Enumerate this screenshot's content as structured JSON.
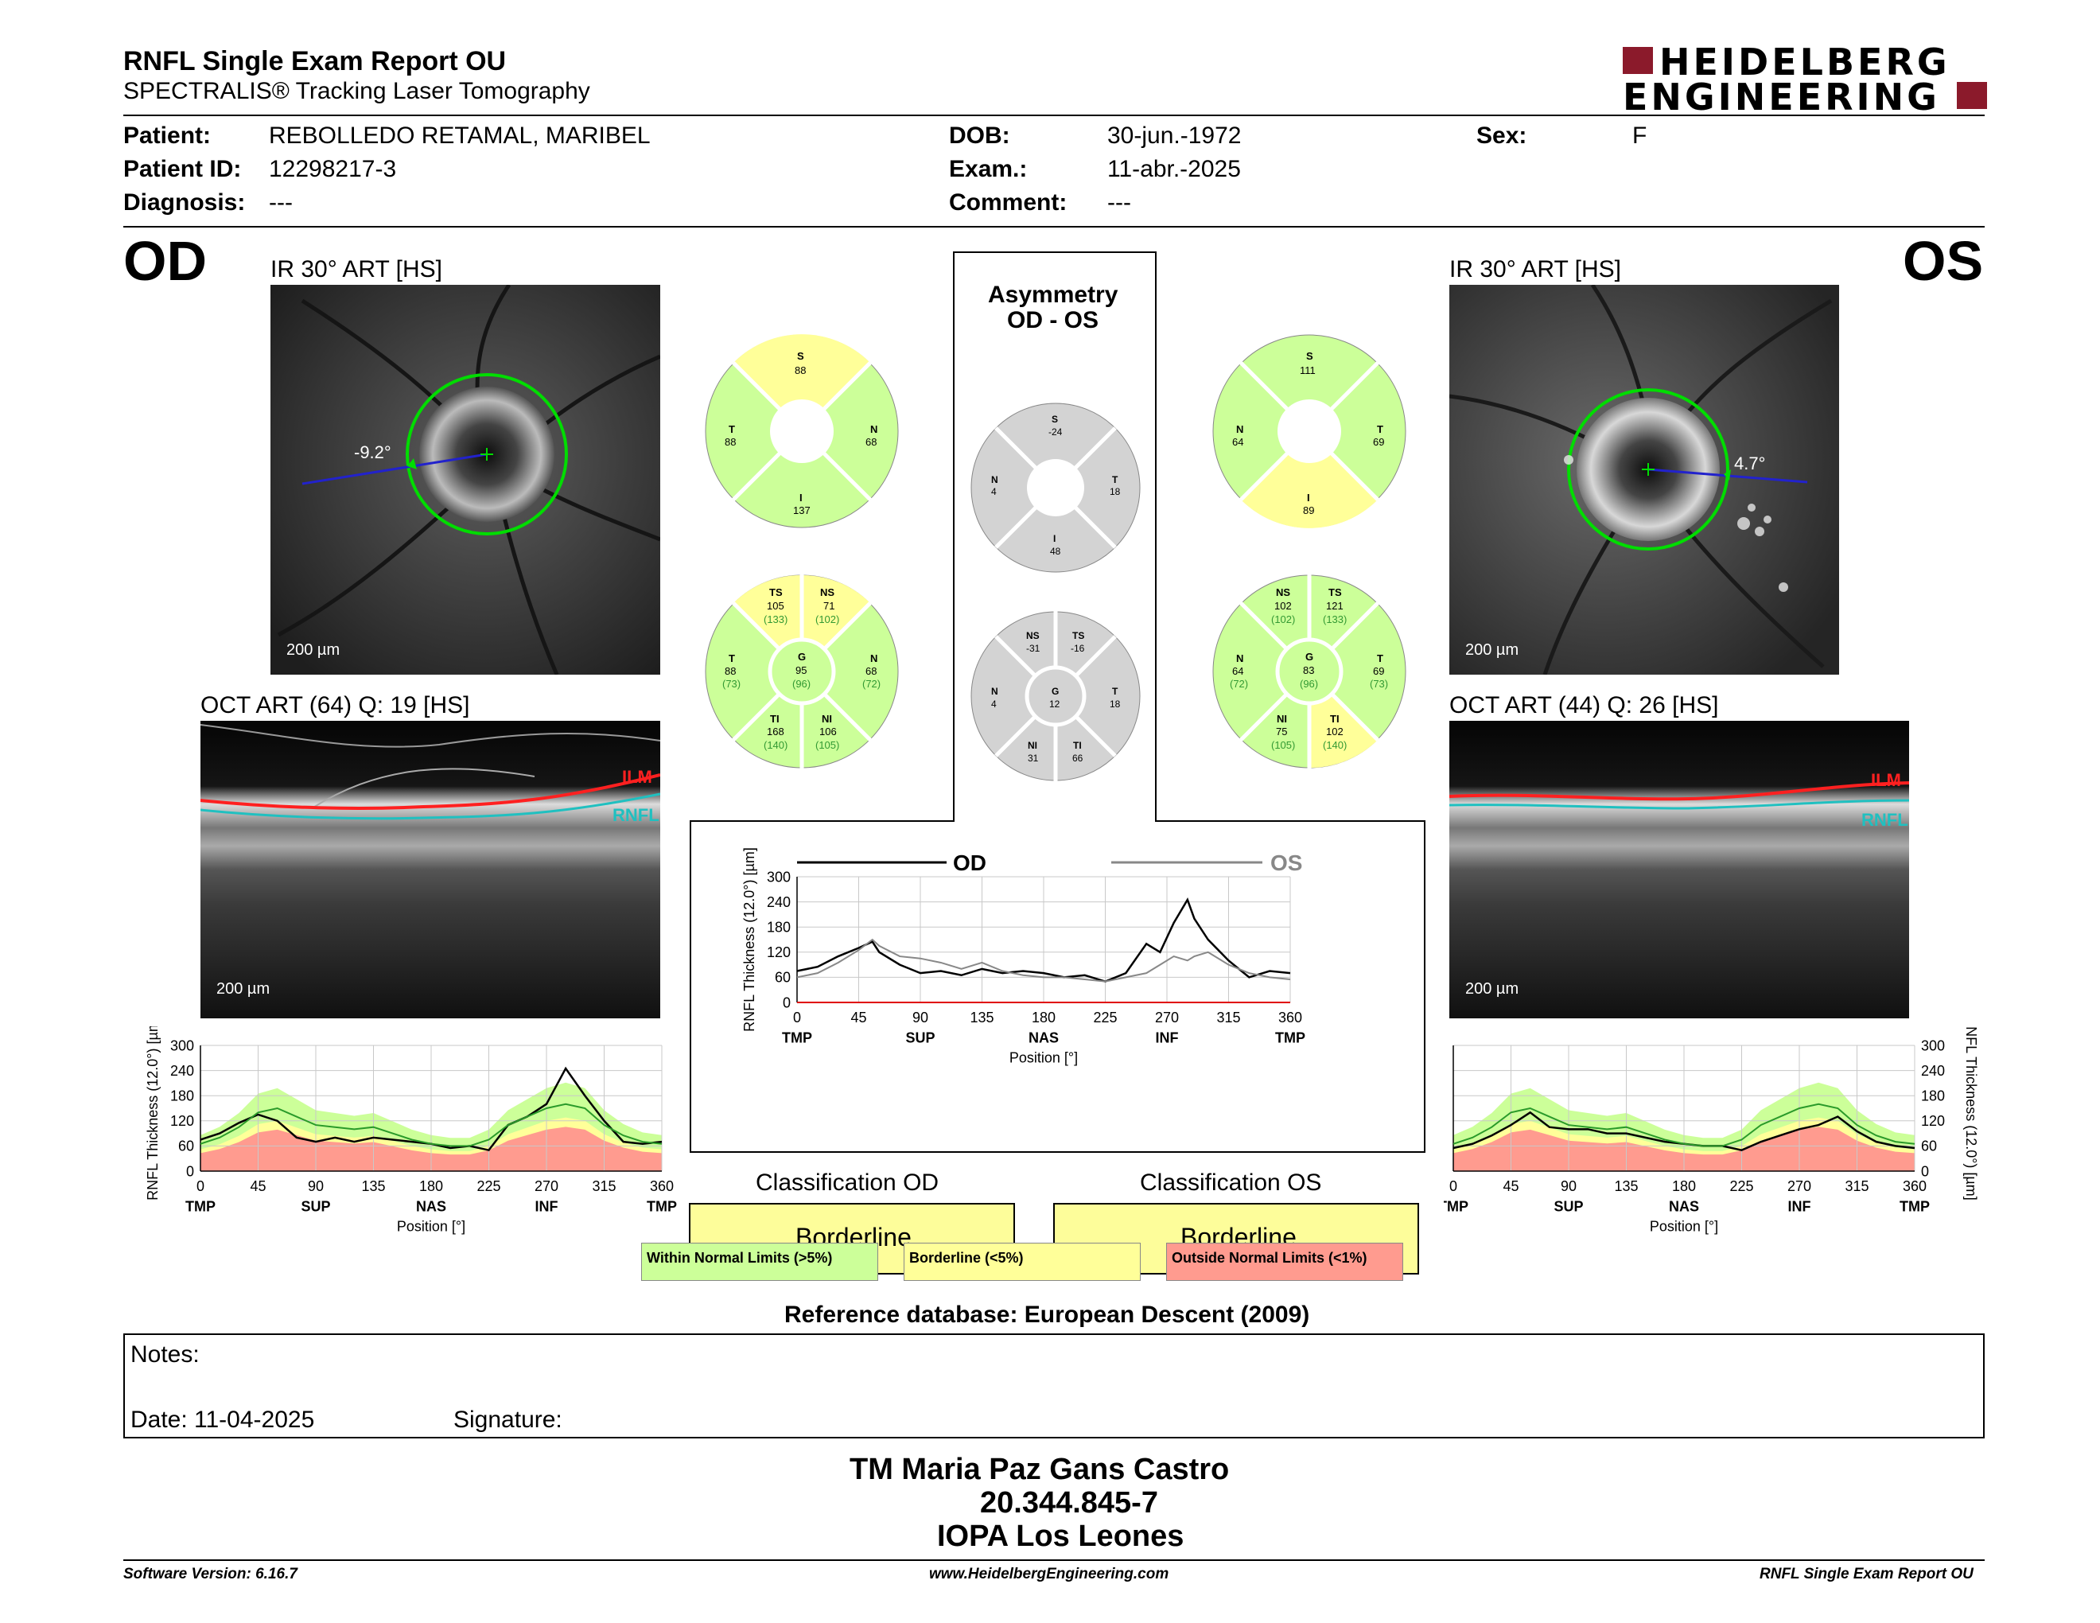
{
  "header": {
    "title": "RNFL Single Exam Report OU",
    "subtitle": "SPECTRALIS® Tracking Laser Tomography",
    "logo_line1": "HEIDELBERG",
    "logo_line2": "ENGINEERING"
  },
  "patient": {
    "patient_label": "Patient:",
    "patient_value": "REBOLLEDO RETAMAL, MARIBEL",
    "id_label": "Patient ID:",
    "id_value": "12298217-3",
    "diagnosis_label": "Diagnosis:",
    "diagnosis_value": "---",
    "dob_label": "DOB:",
    "dob_value": "30-jun.-1972",
    "exam_label": "Exam.:",
    "exam_value": "11-abr.-2025",
    "comment_label": "Comment:",
    "comment_value": "---",
    "sex_label": "Sex:",
    "sex_value": "F"
  },
  "od": {
    "eye": "OD",
    "ir_title": "IR 30° ART [HS]",
    "angle": "-9.2°",
    "ir_scale": "200 µm",
    "oct_title": "OCT ART (64) Q: 19 [HS]",
    "oct_scale": "200 µm",
    "ilm": "ILM",
    "rnfl": "RNFL",
    "quad": {
      "S": "S",
      "S_v": "88",
      "T": "T",
      "T_v": "88",
      "N": "N",
      "N_v": "68",
      "I": "I",
      "I_v": "137"
    },
    "sect": {
      "TS": "TS",
      "TS_v": "105",
      "TS_r": "(133)",
      "NS": "NS",
      "NS_v": "71",
      "NS_r": "(102)",
      "T": "T",
      "T_v": "88",
      "T_r": "(73)",
      "G": "G",
      "G_v": "95",
      "G_r": "(96)",
      "N": "N",
      "N_v": "68",
      "N_r": "(72)",
      "TI": "TI",
      "TI_v": "168",
      "TI_r": "(140)",
      "NI": "NI",
      "NI_v": "106",
      "NI_r": "(105)"
    }
  },
  "os": {
    "eye": "OS",
    "ir_title": "IR 30° ART [HS]",
    "angle": "4.7°",
    "ir_scale": "200 µm",
    "oct_title": "OCT ART (44) Q: 26 [HS]",
    "oct_scale": "200 µm",
    "ilm": "ILM",
    "rnfl": "RNFL",
    "quad": {
      "S": "S",
      "S_v": "111",
      "T": "T",
      "T_v": "69",
      "N": "N",
      "N_v": "64",
      "I": "I",
      "I_v": "89"
    },
    "sect": {
      "NS": "NS",
      "NS_v": "102",
      "NS_r": "(102)",
      "TS": "TS",
      "TS_v": "121",
      "TS_r": "(133)",
      "N": "N",
      "N_v": "64",
      "N_r": "(72)",
      "G": "G",
      "G_v": "83",
      "G_r": "(96)",
      "T": "T",
      "T_v": "69",
      "T_r": "(73)",
      "NI": "NI",
      "NI_v": "75",
      "NI_r": "(105)",
      "TI": "TI",
      "TI_v": "102",
      "TI_r": "(140)"
    }
  },
  "asym": {
    "title1": "Asymmetry",
    "title2": "OD - OS",
    "quad": {
      "S": "S",
      "S_v": "-24",
      "N": "N",
      "N_v": "4",
      "T": "T",
      "T_v": "18",
      "I": "I",
      "I_v": "48"
    },
    "sect": {
      "NS": "NS",
      "NS_v": "-31",
      "TS": "TS",
      "TS_v": "-16",
      "N": "N",
      "N_v": "4",
      "G": "G",
      "G_v": "12",
      "T": "T",
      "T_v": "18",
      "NI": "NI",
      "NI_v": "31",
      "TI": "TI",
      "TI_v": "66"
    }
  },
  "colors": {
    "within": "#ccff99",
    "borderline": "#ffff99",
    "outside": "#ff9b8f",
    "asym_gray": "#d3d3d3"
  },
  "classification": {
    "od_title": "Classification OD",
    "od_value": "Borderline",
    "os_title": "Classification OS",
    "os_value": "Borderline"
  },
  "legend": {
    "within": "Within Normal Limits (>5%)",
    "borderline": "Borderline (<5%)",
    "outside": "Outside Normal Limits (<1%)"
  },
  "reference": "Reference database: European Descent (2009)",
  "notes": {
    "notes_label": "Notes:",
    "date_label": "Date: 11-04-2025",
    "signature_label": "Signature:"
  },
  "signer": {
    "name": "TM Maria Paz Gans Castro",
    "id": "20.344.845-7",
    "org": "IOPA Los Leones"
  },
  "footer": {
    "software": "Software Version: 6.16.7",
    "url": "www.HeidelbergEngineering.com",
    "report": "RNFL Single Exam Report OU"
  },
  "chart_data": [
    {
      "type": "line",
      "title": "",
      "legend": [
        "OD",
        "OS"
      ],
      "ylabel": "RNFL Thickness (12.0°) [µm]",
      "xlabel": "Position [°]",
      "x_ticks": [
        0,
        45,
        90,
        135,
        180,
        225,
        270,
        315,
        360
      ],
      "x_region_labels": [
        "TMP",
        "SUP",
        "NAS",
        "INF",
        "TMP"
      ],
      "y_ticks": [
        0,
        60,
        120,
        180,
        240,
        300
      ],
      "ylim": [
        0,
        300
      ],
      "xlim": [
        0,
        360
      ],
      "x": [
        0,
        15,
        30,
        45,
        55,
        60,
        75,
        90,
        105,
        120,
        135,
        150,
        165,
        180,
        195,
        210,
        225,
        240,
        255,
        265,
        275,
        285,
        290,
        300,
        315,
        330,
        345,
        360
      ],
      "series": [
        {
          "name": "OD",
          "values": [
            75,
            85,
            110,
            130,
            145,
            120,
            90,
            70,
            75,
            65,
            80,
            70,
            75,
            70,
            60,
            65,
            50,
            70,
            140,
            120,
            190,
            245,
            200,
            150,
            100,
            60,
            75,
            70
          ]
        },
        {
          "name": "OS",
          "values": [
            60,
            70,
            95,
            125,
            150,
            135,
            110,
            105,
            95,
            80,
            95,
            75,
            65,
            60,
            60,
            55,
            50,
            60,
            70,
            90,
            110,
            100,
            110,
            120,
            90,
            70,
            60,
            55
          ]
        }
      ]
    },
    {
      "type": "line",
      "title": "",
      "ylabel": "RNFL Thickness (12.0°) [µm]",
      "xlabel": "Position [°]",
      "x_ticks": [
        0,
        45,
        90,
        135,
        180,
        225,
        270,
        315,
        360
      ],
      "x_region_labels": [
        "TMP",
        "SUP",
        "NAS",
        "INF",
        "TMP"
      ],
      "y_ticks": [
        0,
        60,
        120,
        180,
        240,
        300
      ],
      "ylim": [
        0,
        300
      ],
      "xlim": [
        0,
        360
      ],
      "x": [
        0,
        15,
        30,
        45,
        60,
        75,
        90,
        105,
        120,
        135,
        150,
        165,
        180,
        195,
        210,
        225,
        240,
        255,
        270,
        285,
        300,
        315,
        330,
        345,
        360
      ],
      "series": [
        {
          "name": "OD measured",
          "values": [
            75,
            90,
            115,
            135,
            120,
            80,
            70,
            80,
            70,
            80,
            75,
            70,
            65,
            55,
            60,
            50,
            110,
            130,
            160,
            245,
            180,
            120,
            70,
            65,
            70
          ]
        },
        {
          "name": "normal mean",
          "values": [
            65,
            80,
            105,
            140,
            150,
            130,
            110,
            105,
            100,
            105,
            90,
            75,
            65,
            60,
            60,
            75,
            110,
            130,
            150,
            160,
            150,
            110,
            85,
            70,
            65
          ]
        }
      ]
    },
    {
      "type": "line",
      "title": "",
      "ylabel": "RNFL Thickness (12.0°) [µm]",
      "xlabel": "Position [°]",
      "x_ticks": [
        0,
        45,
        90,
        135,
        180,
        225,
        270,
        315,
        360
      ],
      "x_region_labels": [
        "TMP",
        "SUP",
        "NAS",
        "INF",
        "TMP"
      ],
      "y_ticks": [
        0,
        60,
        120,
        180,
        240,
        300
      ],
      "ylim": [
        0,
        300
      ],
      "xlim": [
        0,
        360
      ],
      "x": [
        0,
        15,
        30,
        45,
        60,
        75,
        90,
        105,
        120,
        135,
        150,
        165,
        180,
        195,
        210,
        225,
        240,
        255,
        270,
        285,
        300,
        315,
        330,
        345,
        360
      ],
      "series": [
        {
          "name": "OS measured",
          "values": [
            55,
            65,
            85,
            110,
            140,
            105,
            100,
            100,
            90,
            90,
            80,
            70,
            65,
            60,
            60,
            50,
            70,
            85,
            100,
            110,
            130,
            95,
            70,
            60,
            55
          ]
        },
        {
          "name": "normal mean",
          "values": [
            65,
            80,
            105,
            140,
            150,
            130,
            110,
            105,
            100,
            105,
            90,
            75,
            65,
            60,
            60,
            75,
            110,
            130,
            150,
            160,
            150,
            110,
            85,
            70,
            65
          ]
        }
      ]
    }
  ]
}
